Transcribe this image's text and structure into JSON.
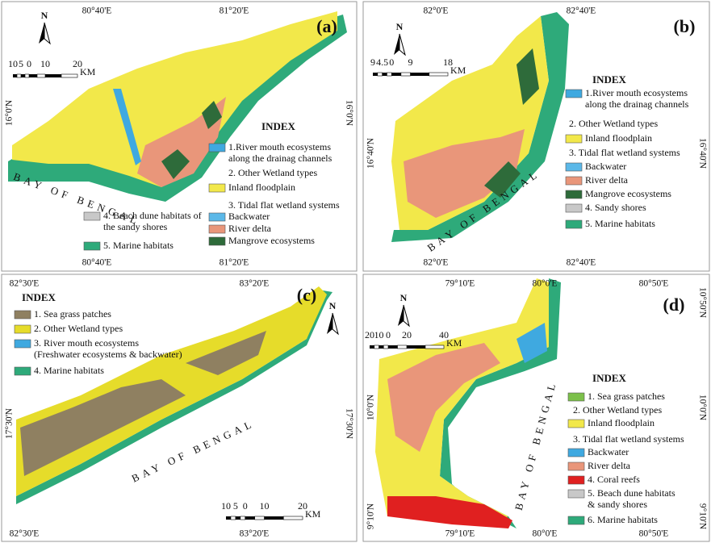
{
  "panels": [
    {
      "label": "(a)",
      "top_coords": [
        "80°40'E",
        "81°20'E"
      ],
      "bottom_coords": [
        "80°40'E",
        "81°20'E"
      ],
      "left_coords": [
        "16°0'N"
      ],
      "right_coords": [
        "16°0'N"
      ],
      "north": "N",
      "scale": {
        "ticks": [
          "10",
          "5",
          "0",
          "10",
          "20"
        ],
        "unit": "KM"
      },
      "sea_label": "BAY OF BENGAL",
      "index": {
        "title": "INDEX",
        "items": [
          {
            "lines": [
              "1.River mouth ecosystems",
              "along the drainag channels"
            ],
            "color": "#3fa9e0"
          },
          {
            "lines": [
              "2. Other Wetland types"
            ]
          },
          {
            "lines": [
              "Inland floodplain"
            ],
            "color": "#f2e84a"
          },
          {
            "lines": [
              "3. Tidal flat wetland systems"
            ]
          },
          {
            "lines": [
              "Backwater"
            ],
            "color": "#5bb8e8"
          },
          {
            "lines": [
              "River delta"
            ],
            "color": "#e9967a"
          },
          {
            "lines": [
              "Mangrove ecosystems"
            ],
            "color": "#2e6b3a"
          },
          {
            "lines": [
              "4. Beach dune habitats of",
              "the sandy shores"
            ],
            "color": "#c8c8c8"
          },
          {
            "lines": [
              "5. Marine habitats"
            ],
            "color": "#2eaa7a"
          }
        ]
      }
    },
    {
      "label": "(b)",
      "top_coords": [
        "82°0'E",
        "82°40'E"
      ],
      "bottom_coords": [
        "82°0'E",
        "82°40'E"
      ],
      "left_coords": [
        "16°40'N"
      ],
      "right_coords": [
        "16°40'N"
      ],
      "north": "N",
      "scale": {
        "ticks": [
          "9",
          "4.5",
          "0",
          "9",
          "18"
        ],
        "unit": "KM"
      },
      "sea_label": "BAY OF BENGAL",
      "index": {
        "title": "INDEX",
        "items": [
          {
            "lines": [
              "1.River mouth ecosystems",
              "along the drainag channels"
            ],
            "color": "#3fa9e0"
          },
          {
            "lines": [
              "2. Other Wetland types"
            ]
          },
          {
            "lines": [
              "Inland floodplain"
            ],
            "color": "#f2e84a"
          },
          {
            "lines": [
              "3. Tidal flat wetland systems"
            ]
          },
          {
            "lines": [
              "Backwater"
            ],
            "color": "#5bb8e8"
          },
          {
            "lines": [
              "River delta"
            ],
            "color": "#e9967a"
          },
          {
            "lines": [
              "Mangrove ecosystems"
            ],
            "color": "#2e6b3a"
          },
          {
            "lines": [
              "4. Sandy shores"
            ],
            "color": "#c8c8c8"
          },
          {
            "lines": [
              "5. Marine habitats"
            ],
            "color": "#2eaa7a"
          }
        ]
      }
    },
    {
      "label": "(c)",
      "top_coords": [
        "82°30'E",
        "83°20'E"
      ],
      "bottom_coords": [
        "82°30'E",
        "83°20'E"
      ],
      "left_coords": [
        "17°30'N"
      ],
      "right_coords": [
        "17°30'N"
      ],
      "north": "N",
      "scale": {
        "ticks": [
          "10",
          "5",
          "0",
          "10",
          "20"
        ],
        "unit": "KM"
      },
      "sea_label": "BAY OF BENGAL",
      "index": {
        "title": "INDEX",
        "items": [
          {
            "lines": [
              "1. Sea grass patches"
            ],
            "color": "#8f8061"
          },
          {
            "lines": [
              "2. Other Wetland types"
            ],
            "color": "#e6dc2a"
          },
          {
            "lines": [
              "3. River mouth ecosystems",
              "(Freshwater ecosystems & backwater)"
            ],
            "color": "#3fa9e0"
          },
          {
            "lines": [
              "4. Marine habitats"
            ],
            "color": "#2eaa7a"
          }
        ]
      }
    },
    {
      "label": "(d)",
      "top_coords": [
        "79°10'E",
        "80°0'E",
        "80°50'E"
      ],
      "bottom_coords": [
        "79°10'E",
        "80°0'E",
        "80°50'E"
      ],
      "left_coords": [
        "10°0'N",
        "9°10'N"
      ],
      "right_coords": [
        "10°50'N",
        "10°0'N",
        "9°10'N"
      ],
      "north": "N",
      "scale": {
        "ticks": [
          "20",
          "10",
          "0",
          "20",
          "40"
        ],
        "unit": "KM"
      },
      "sea_label": "BAY OF BENGAL",
      "index": {
        "title": "INDEX",
        "items": [
          {
            "lines": [
              "1. Sea grass patches"
            ],
            "color": "#7cc04a"
          },
          {
            "lines": [
              "2. Other Wetland types"
            ]
          },
          {
            "lines": [
              "Inland floodplain"
            ],
            "color": "#f2e84a"
          },
          {
            "lines": [
              "3. Tidal flat wetland systems"
            ]
          },
          {
            "lines": [
              "Backwater"
            ],
            "color": "#3fa9e0"
          },
          {
            "lines": [
              "River delta"
            ],
            "color": "#e9967a"
          },
          {
            "lines": [
              "4. Coral reefs"
            ],
            "color": "#e02020"
          },
          {
            "lines": [
              "5. Beach dune habitats",
              "& sandy shores"
            ],
            "color": "#c8c8c8"
          },
          {
            "lines": [
              "6. Marine habitats"
            ],
            "color": "#2eaa7a"
          }
        ]
      }
    }
  ]
}
